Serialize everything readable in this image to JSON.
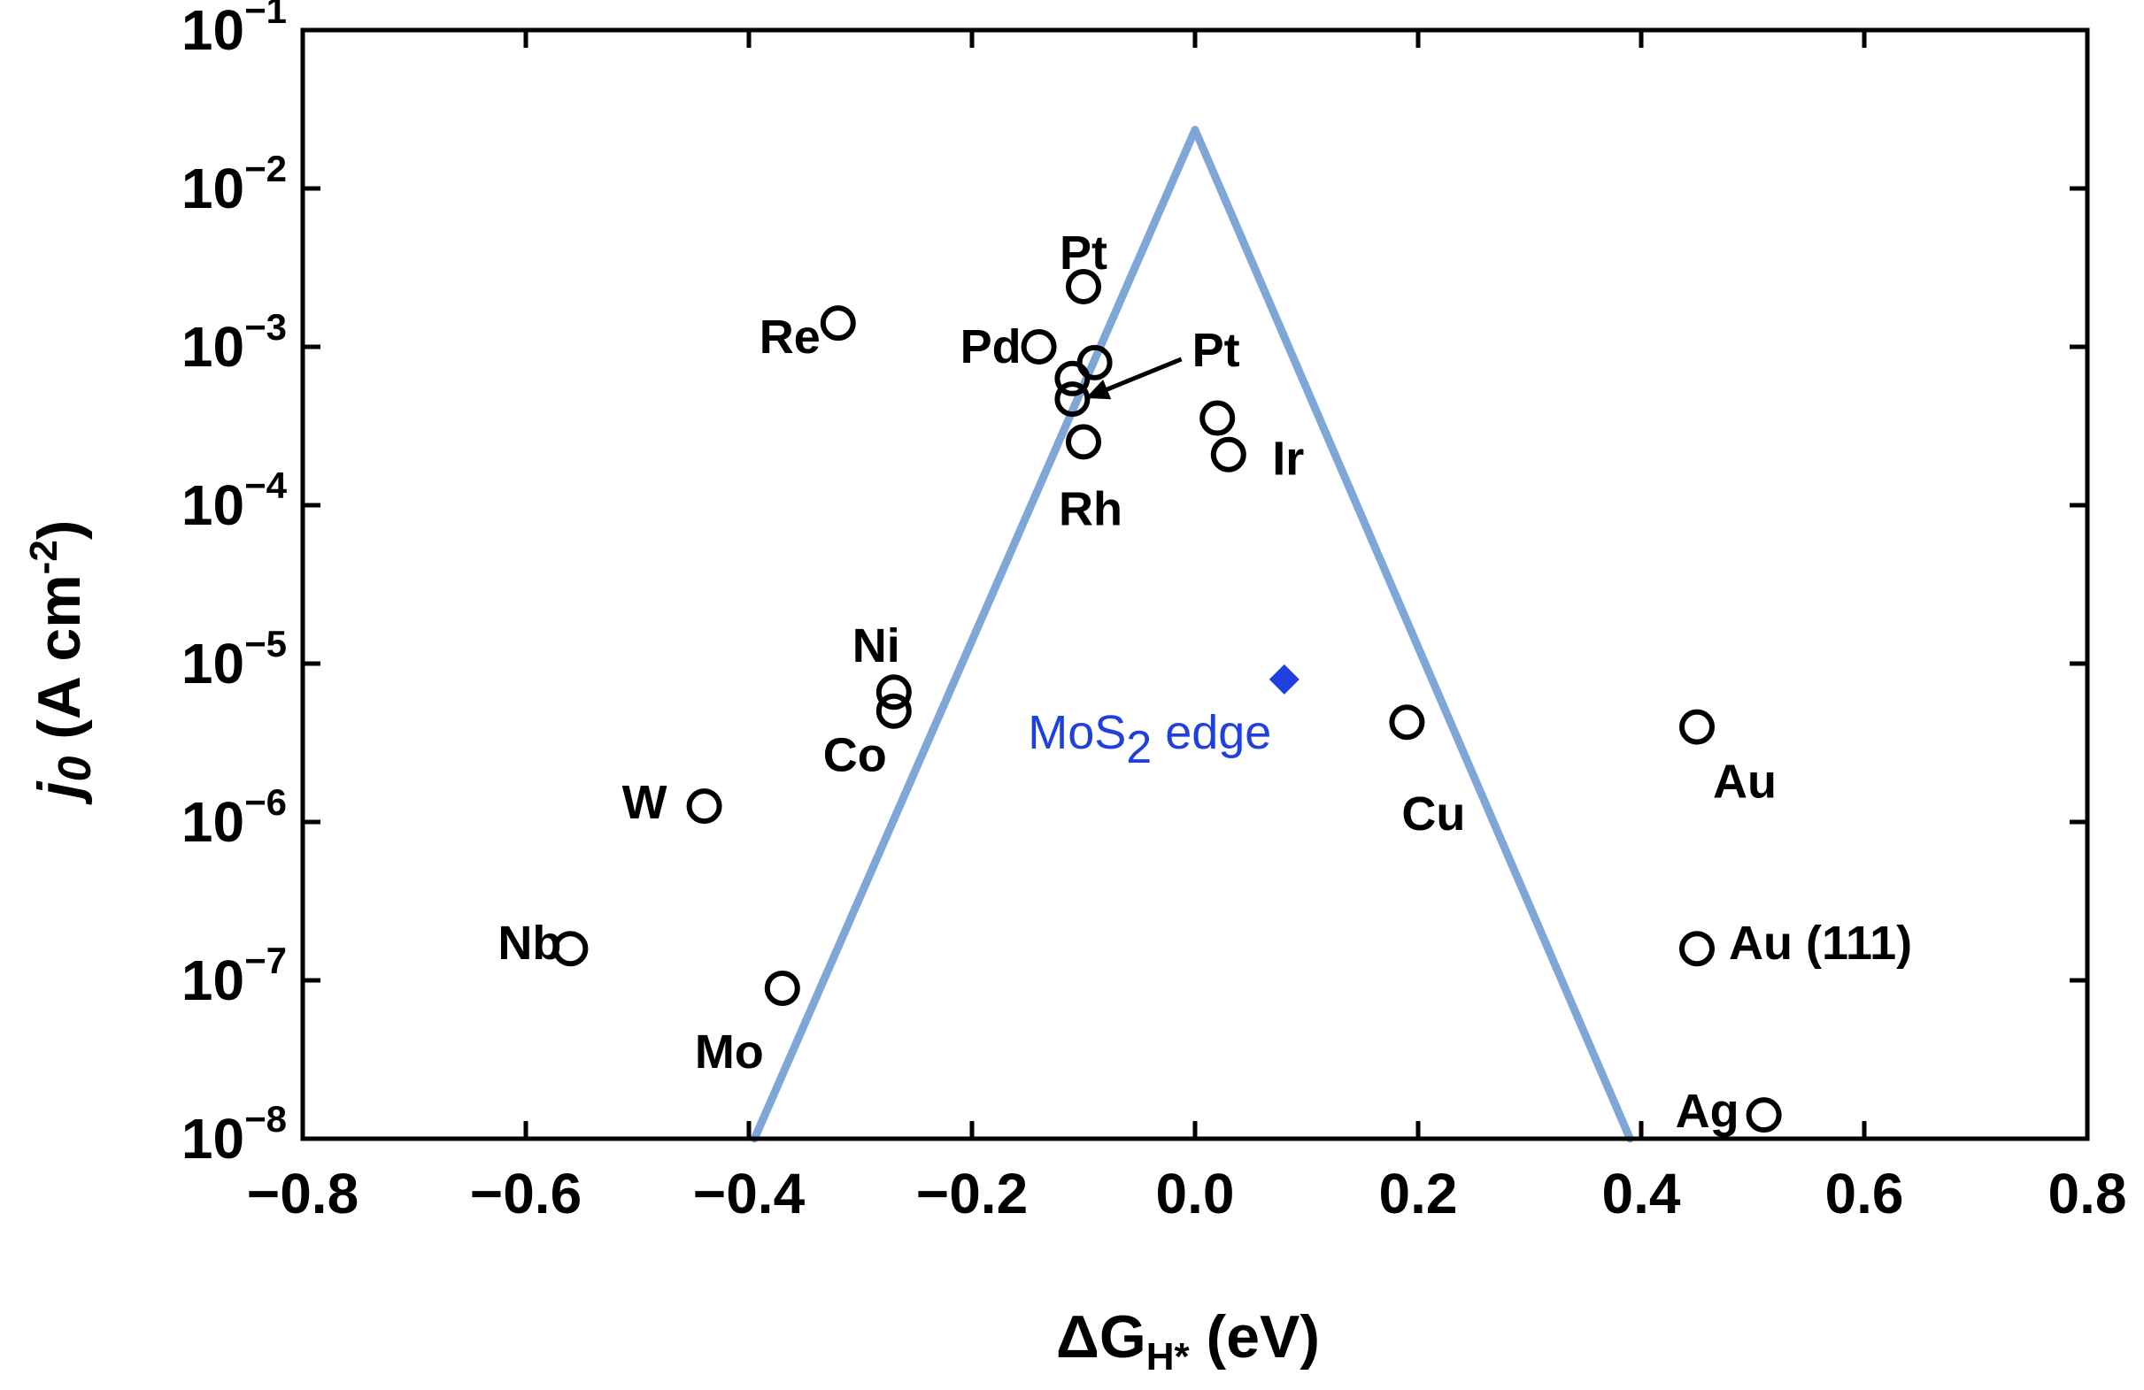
{
  "chart_data": {
    "type": "scatter",
    "xlabel": {
      "main": "ΔG",
      "sub": "H*",
      "unit": " (eV)"
    },
    "ylabel": {
      "main": "j",
      "sub": "0",
      "unit": " (A cm",
      "unit_sup": "-2",
      "unit_end": ")"
    },
    "xlim": [
      -0.8,
      0.8
    ],
    "ylim_log10": [
      -8,
      -1
    ],
    "y_scale": "log",
    "grid": false,
    "x_ticks": [
      -0.8,
      -0.6,
      -0.4,
      -0.2,
      0.0,
      0.2,
      0.4,
      0.6,
      0.8
    ],
    "x_tick_labels": [
      "−0.8",
      "−0.6",
      "−0.4",
      "−0.2",
      "0.0",
      "0.2",
      "0.4",
      "0.6",
      "0.8"
    ],
    "y_ticks": [
      {
        "base": "10",
        "exp": "−8",
        "value": -8
      },
      {
        "base": "10",
        "exp": "−7",
        "value": -7
      },
      {
        "base": "10",
        "exp": "−6",
        "value": -6
      },
      {
        "base": "10",
        "exp": "−5",
        "value": -5
      },
      {
        "base": "10",
        "exp": "−4",
        "value": -4
      },
      {
        "base": "10",
        "exp": "−3",
        "value": -3
      },
      {
        "base": "10",
        "exp": "−2",
        "value": -2
      },
      {
        "base": "10",
        "exp": "−1",
        "value": -1
      }
    ],
    "volcano": {
      "color": "#7fa6d9",
      "points": [
        {
          "x": -0.395,
          "log10_y": -8.0
        },
        {
          "x": 0.0,
          "log10_y": -1.63
        },
        {
          "x": 0.39,
          "log10_y": -8.0
        }
      ]
    },
    "metals": [
      {
        "label": "Pt",
        "x": -0.1,
        "log10_y": -2.62
      },
      {
        "label": "Re",
        "x": -0.32,
        "log10_y": -2.85
      },
      {
        "label": "Pd",
        "x": -0.14,
        "log10_y": -3.0
      },
      {
        "label": "Pt",
        "x": -0.09,
        "log10_y": -3.1
      },
      {
        "label": "",
        "x": -0.11,
        "log10_y": -3.2
      },
      {
        "label": "",
        "x": -0.11,
        "log10_y": -3.33
      },
      {
        "label": "Rh",
        "x": -0.1,
        "log10_y": -3.6
      },
      {
        "label": "Ir",
        "x": 0.02,
        "log10_y": -3.45
      },
      {
        "label": "",
        "x": 0.03,
        "log10_y": -3.68
      },
      {
        "label": "Ni",
        "x": -0.27,
        "log10_y": -5.18
      },
      {
        "label": "Co",
        "x": -0.27,
        "log10_y": -5.3
      },
      {
        "label": "W",
        "x": -0.44,
        "log10_y": -5.9
      },
      {
        "label": "Nb",
        "x": -0.56,
        "log10_y": -6.8
      },
      {
        "label": "Mo",
        "x": -0.37,
        "log10_y": -7.05
      },
      {
        "label": "Cu",
        "x": 0.19,
        "log10_y": -5.37
      },
      {
        "label": "Au",
        "x": 0.45,
        "log10_y": -5.4
      },
      {
        "label": "Au (111)",
        "x": 0.45,
        "log10_y": -6.8
      },
      {
        "label": "Ag",
        "x": 0.51,
        "log10_y": -7.85
      }
    ],
    "mos2": {
      "label_main": "MoS",
      "label_sub": "2",
      "label_end": " edge",
      "x": 0.08,
      "log10_y": -5.1,
      "color": "#1f3fe0"
    }
  }
}
